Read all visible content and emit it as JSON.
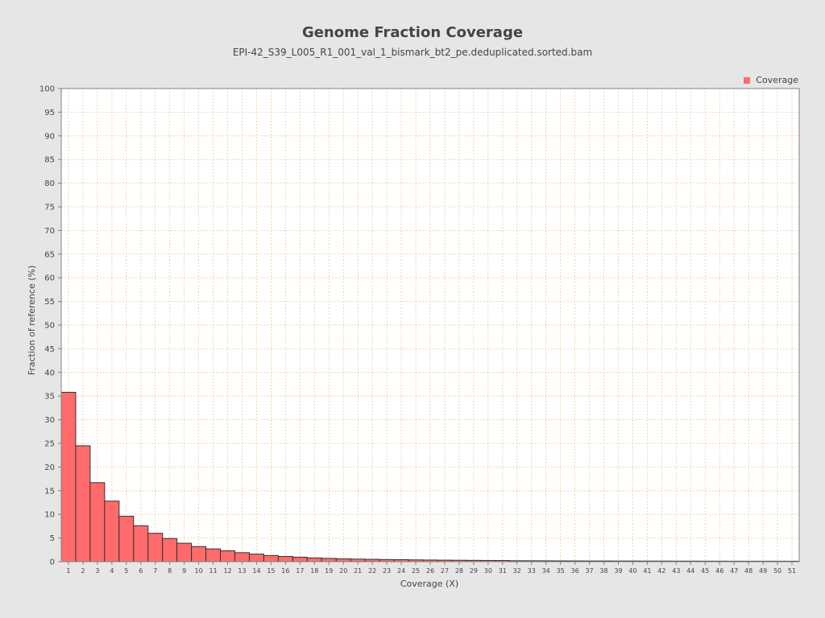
{
  "chart_data": {
    "type": "bar",
    "title": "Genome Fraction Coverage",
    "subtitle": "EPI-42_S39_L005_R1_001_val_1_bismark_bt2_pe.deduplicated.sorted.bam",
    "xlabel": "Coverage (X)",
    "ylabel": "Fraction of reference (%)",
    "ylim": [
      0,
      100
    ],
    "yticks": [
      0,
      5,
      10,
      15,
      20,
      25,
      30,
      35,
      40,
      45,
      50,
      55,
      60,
      65,
      70,
      75,
      80,
      85,
      90,
      95,
      100
    ],
    "grid": true,
    "legend": "top-right",
    "categories": [
      "1",
      "2",
      "3",
      "4",
      "5",
      "6",
      "7",
      "8",
      "9",
      "10",
      "11",
      "12",
      "13",
      "14",
      "15",
      "16",
      "17",
      "18",
      "19",
      "20",
      "21",
      "22",
      "23",
      "24",
      "25",
      "26",
      "27",
      "28",
      "29",
      "30",
      "31",
      "32",
      "33",
      "34",
      "35",
      "36",
      "37",
      "38",
      "39",
      "40",
      "41",
      "42",
      "43",
      "44",
      "45",
      "46",
      "47",
      "48",
      "49",
      "50",
      "51"
    ],
    "series": [
      {
        "name": "Coverage",
        "color": "#ff6b6b",
        "values": [
          35.8,
          24.5,
          16.7,
          12.8,
          9.6,
          7.6,
          6.0,
          4.9,
          3.9,
          3.2,
          2.7,
          2.3,
          1.9,
          1.6,
          1.3,
          1.1,
          0.95,
          0.8,
          0.7,
          0.6,
          0.55,
          0.5,
          0.45,
          0.42,
          0.38,
          0.35,
          0.32,
          0.3,
          0.28,
          0.26,
          0.25,
          0.2,
          0.19,
          0.18,
          0.17,
          0.16,
          0.15,
          0.15,
          0.14,
          0.14,
          0.13,
          0.13,
          0.12,
          0.12,
          0.11,
          0.11,
          0.1,
          0.1,
          0.1,
          0.1,
          0.1
        ]
      }
    ]
  },
  "colors": {
    "background": "#e6e6e6",
    "plot_background": "#ffffff",
    "bar_fill": "#ff6b6b",
    "bar_stroke": "#333333",
    "grid": "#f2c9a0"
  }
}
